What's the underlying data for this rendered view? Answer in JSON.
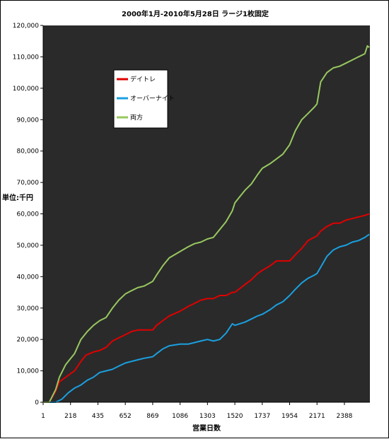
{
  "chart_data": {
    "type": "line",
    "title": "2000年1月-2010年5月28日 ラージ1枚固定",
    "xlabel": "営業日数",
    "ylabel": "単位:千円",
    "ylim": [
      0,
      120000
    ],
    "y_ticks": [
      0,
      10000,
      20000,
      30000,
      40000,
      50000,
      60000,
      70000,
      80000,
      90000,
      100000,
      110000,
      120000
    ],
    "y_tick_labels": [
      "0",
      "10,000",
      "20,000",
      "30,000",
      "40,000",
      "50,000",
      "60,000",
      "70,000",
      "80,000",
      "90,000",
      "100,000",
      "110,000",
      "120,000"
    ],
    "x_ticks": [
      1,
      218,
      435,
      652,
      869,
      1086,
      1303,
      1520,
      1737,
      1954,
      2171,
      2388
    ],
    "xlim": [
      1,
      2590
    ],
    "grid": false,
    "legend_position": "top-left",
    "background": "#2a2a2a",
    "series": [
      {
        "name": "デイトレ",
        "color": "#e00000",
        "x": [
          1,
          50,
          100,
          130,
          180,
          250,
          300,
          340,
          400,
          450,
          500,
          550,
          600,
          652,
          700,
          750,
          800,
          869,
          900,
          950,
          1000,
          1086,
          1150,
          1200,
          1250,
          1303,
          1350,
          1400,
          1450,
          1500,
          1520,
          1600,
          1650,
          1700,
          1737,
          1800,
          1850,
          1900,
          1954,
          2000,
          2050,
          2100,
          2171,
          2200,
          2250,
          2300,
          2350,
          2400,
          2450,
          2500,
          2550,
          2585
        ],
        "y": [
          0,
          0,
          3500,
          6500,
          8000,
          10000,
          13000,
          15000,
          16000,
          16500,
          17500,
          19500,
          20500,
          21500,
          22500,
          23000,
          23000,
          23000,
          24500,
          26000,
          27500,
          29000,
          30500,
          31500,
          32500,
          33000,
          33000,
          34000,
          34000,
          35000,
          35000,
          37500,
          39000,
          41000,
          42000,
          43500,
          45000,
          45000,
          45000,
          47000,
          49000,
          51500,
          53000,
          54500,
          56000,
          57000,
          57000,
          58000,
          58500,
          59000,
          59500,
          60000
        ]
      },
      {
        "name": "オーバーナイト",
        "color": "#1aa0e0",
        "x": [
          1,
          100,
          150,
          200,
          250,
          300,
          350,
          400,
          450,
          500,
          550,
          600,
          652,
          700,
          750,
          800,
          869,
          900,
          950,
          1000,
          1086,
          1150,
          1200,
          1250,
          1303,
          1350,
          1400,
          1450,
          1500,
          1520,
          1600,
          1650,
          1700,
          1737,
          1800,
          1850,
          1900,
          1954,
          2000,
          2050,
          2100,
          2150,
          2171,
          2200,
          2250,
          2300,
          2350,
          2400,
          2450,
          2500,
          2550,
          2585
        ],
        "y": [
          0,
          0,
          1000,
          3000,
          4500,
          5500,
          7000,
          8000,
          9500,
          10000,
          10500,
          11500,
          12500,
          13000,
          13500,
          14000,
          14500,
          15500,
          17000,
          18000,
          18500,
          18500,
          19000,
          19500,
          20000,
          19500,
          20000,
          22000,
          25000,
          24500,
          25500,
          26500,
          27500,
          28000,
          29500,
          31000,
          32000,
          34000,
          36000,
          38000,
          39500,
          40500,
          41000,
          43000,
          46500,
          48500,
          49500,
          50000,
          51000,
          51500,
          52500,
          53500
        ]
      },
      {
        "name": "両方",
        "color": "#98c860",
        "x": [
          1,
          50,
          100,
          130,
          180,
          250,
          300,
          350,
          400,
          450,
          500,
          550,
          600,
          652,
          700,
          750,
          800,
          869,
          900,
          950,
          1000,
          1086,
          1150,
          1200,
          1250,
          1303,
          1350,
          1400,
          1450,
          1500,
          1520,
          1550,
          1600,
          1650,
          1700,
          1737,
          1800,
          1850,
          1900,
          1954,
          2000,
          2050,
          2100,
          2150,
          2171,
          2200,
          2250,
          2300,
          2350,
          2400,
          2450,
          2500,
          2550,
          2570,
          2585
        ],
        "y": [
          0,
          0,
          4000,
          8000,
          12000,
          15500,
          20000,
          22500,
          24500,
          26000,
          27000,
          30000,
          32500,
          34500,
          35500,
          36500,
          37000,
          38500,
          40500,
          43500,
          46000,
          48000,
          49500,
          50500,
          51000,
          52000,
          52500,
          55000,
          57500,
          61000,
          63500,
          65000,
          67500,
          69500,
          72500,
          74500,
          76000,
          77500,
          79000,
          82000,
          86500,
          90000,
          92000,
          94000,
          95000,
          102000,
          105000,
          106500,
          107000,
          108000,
          109000,
          110000,
          111000,
          113500,
          113000
        ]
      }
    ]
  }
}
